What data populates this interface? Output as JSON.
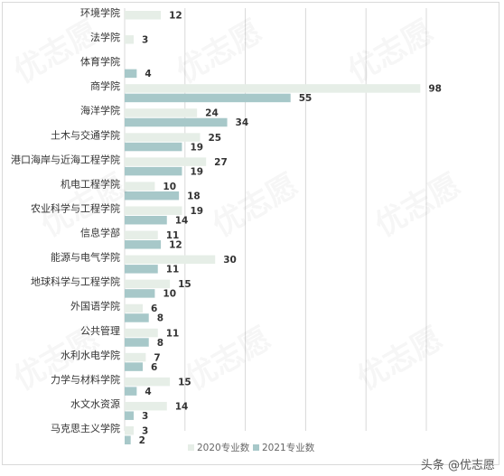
{
  "colors": {
    "series_2020": "#e6eee7",
    "series_2021": "#a7c8c9",
    "grid": "#d9d9d9"
  },
  "chart_data": {
    "type": "bar",
    "orientation": "horizontal",
    "categories": [
      "环境学院",
      "法学院",
      "体育学院",
      "商学院",
      "海洋学院",
      "土木与交通学院",
      "港口海岸与近海工程学院",
      "机电工程学院",
      "农业科学与工程学院",
      "信息学部",
      "能源与电气学院",
      "地球科学与工程学院",
      "外国语学院",
      "公共管理",
      "水利水电学院",
      "力学与材料学院",
      "水文水资源",
      "马克思主义学院"
    ],
    "series": [
      {
        "name": "2020专业数",
        "values": [
          12,
          3,
          null,
          98,
          24,
          25,
          27,
          10,
          19,
          11,
          30,
          15,
          6,
          11,
          7,
          15,
          14,
          3
        ]
      },
      {
        "name": "2021专业数",
        "values": [
          null,
          null,
          4,
          55,
          34,
          19,
          19,
          18,
          14,
          12,
          11,
          10,
          8,
          8,
          6,
          4,
          3,
          2
        ]
      }
    ],
    "xlim": [
      0,
      100
    ],
    "grid": true,
    "legend": "bottom-center",
    "title": "",
    "xlabel": "",
    "ylabel": ""
  },
  "legend": {
    "label_2020": "2020专业数",
    "label_2021": "2021专业数"
  },
  "watermark": {
    "text": "优志愿"
  },
  "brand": {
    "text": "头条 @优志愿"
  }
}
